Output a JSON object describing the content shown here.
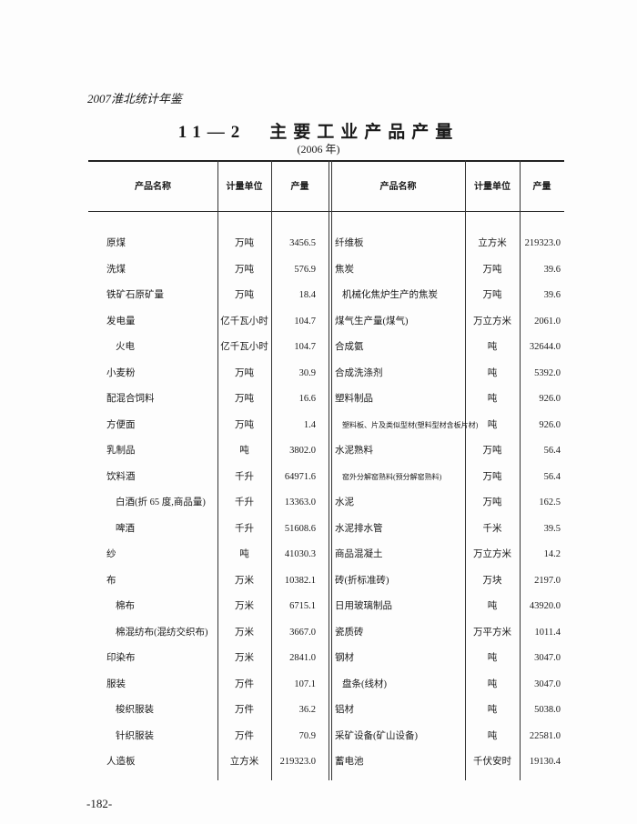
{
  "header": {
    "book": "2007淮北统计年鉴",
    "title": "11—2　主要工业产品产量",
    "subtitle": "(2006 年)"
  },
  "columns": {
    "name": "产品名称",
    "unit": "计量单位",
    "output": "产量"
  },
  "left_rows": [
    {
      "name": "原煤",
      "unit": "万吨",
      "value": "3456.5",
      "indent": 0
    },
    {
      "name": "洗煤",
      "unit": "万吨",
      "value": "576.9",
      "indent": 0
    },
    {
      "name": "铁矿石原矿量",
      "unit": "万吨",
      "value": "18.4",
      "indent": 0
    },
    {
      "name": "发电量",
      "unit": "亿千瓦小时",
      "value": "104.7",
      "indent": 0
    },
    {
      "name": "火电",
      "unit": "亿千瓦小时",
      "value": "104.7",
      "indent": 1
    },
    {
      "name": "小麦粉",
      "unit": "万吨",
      "value": "30.9",
      "indent": 0
    },
    {
      "name": "配混合饲料",
      "unit": "万吨",
      "value": "16.6",
      "indent": 0
    },
    {
      "name": "方便面",
      "unit": "万吨",
      "value": "1.4",
      "indent": 0
    },
    {
      "name": "乳制品",
      "unit": "吨",
      "value": "3802.0",
      "indent": 0
    },
    {
      "name": "饮料酒",
      "unit": "千升",
      "value": "64971.6",
      "indent": 0
    },
    {
      "name": "白酒(折 65 度,商品量)",
      "unit": "千升",
      "value": "13363.0",
      "indent": 1
    },
    {
      "name": "啤酒",
      "unit": "千升",
      "value": "51608.6",
      "indent": 1
    },
    {
      "name": "纱",
      "unit": "吨",
      "value": "41030.3",
      "indent": 0
    },
    {
      "name": "布",
      "unit": "万米",
      "value": "10382.1",
      "indent": 0
    },
    {
      "name": "棉布",
      "unit": "万米",
      "value": "6715.1",
      "indent": 1
    },
    {
      "name": "棉混纺布(混纺交织布)",
      "unit": "万米",
      "value": "3667.0",
      "indent": 1
    },
    {
      "name": "印染布",
      "unit": "万米",
      "value": "2841.0",
      "indent": 0
    },
    {
      "name": "服装",
      "unit": "万件",
      "value": "107.1",
      "indent": 0
    },
    {
      "name": "梭织服装",
      "unit": "万件",
      "value": "36.2",
      "indent": 1
    },
    {
      "name": "针织服装",
      "unit": "万件",
      "value": "70.9",
      "indent": 1
    },
    {
      "name": "人造板",
      "unit": "立方米",
      "value": "219323.0",
      "indent": 0
    }
  ],
  "right_rows": [
    {
      "name": "纤维板",
      "unit": "立方米",
      "value": "219323.0",
      "indent": 0
    },
    {
      "name": "焦炭",
      "unit": "万吨",
      "value": "39.6",
      "indent": 0
    },
    {
      "name": "机械化焦炉生产的焦炭",
      "unit": "万吨",
      "value": "39.6",
      "indent": 1
    },
    {
      "name": "煤气生产量(煤气)",
      "unit": "万立方米",
      "value": "2061.0",
      "indent": 0
    },
    {
      "name": "合成氨",
      "unit": "吨",
      "value": "32644.0",
      "indent": 0
    },
    {
      "name": "合成洗涤剂",
      "unit": "吨",
      "value": "5392.0",
      "indent": 0
    },
    {
      "name": "塑料制品",
      "unit": "吨",
      "value": "926.0",
      "indent": 0
    },
    {
      "name": "塑料板、片及类似型材(塑料型材含板片材)",
      "unit": "吨",
      "value": "926.0",
      "indent": 1
    },
    {
      "name": "水泥熟料",
      "unit": "万吨",
      "value": "56.4",
      "indent": 0
    },
    {
      "name": "窑外分解窑熟料(预分解窑熟料)",
      "unit": "万吨",
      "value": "56.4",
      "indent": 1
    },
    {
      "name": "水泥",
      "unit": "万吨",
      "value": "162.5",
      "indent": 0
    },
    {
      "name": "水泥排水管",
      "unit": "千米",
      "value": "39.5",
      "indent": 0
    },
    {
      "name": "商品混凝土",
      "unit": "万立方米",
      "value": "14.2",
      "indent": 0
    },
    {
      "name": "砖(折标准砖)",
      "unit": "万块",
      "value": "2197.0",
      "indent": 0
    },
    {
      "name": "日用玻璃制品",
      "unit": "吨",
      "value": "43920.0",
      "indent": 0
    },
    {
      "name": "瓷质砖",
      "unit": "万平方米",
      "value": "1011.4",
      "indent": 0
    },
    {
      "name": "钢材",
      "unit": "吨",
      "value": "3047.0",
      "indent": 0
    },
    {
      "name": "盘条(线材)",
      "unit": "吨",
      "value": "3047.0",
      "indent": 1
    },
    {
      "name": "铝材",
      "unit": "吨",
      "value": "5038.0",
      "indent": 0
    },
    {
      "name": "采矿设备(矿山设备)",
      "unit": "吨",
      "value": "22581.0",
      "indent": 0
    },
    {
      "name": "蓄电池",
      "unit": "千伏安时",
      "value": "19130.4",
      "indent": 0
    }
  ],
  "footer": {
    "page_number": "-182-"
  }
}
